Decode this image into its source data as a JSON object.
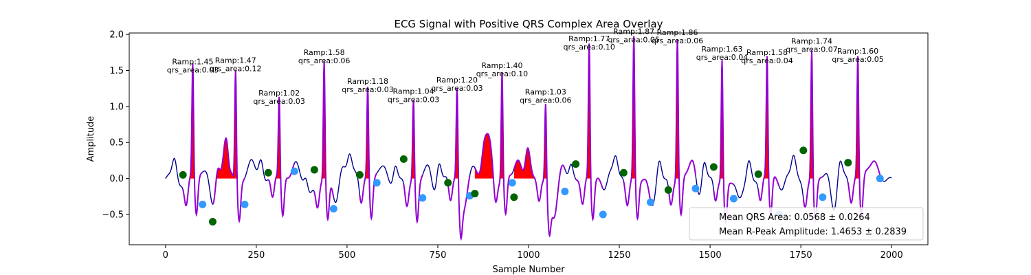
{
  "chart_data": {
    "type": "line",
    "title": "ECG Signal with Positive QRS Complex Area Overlay",
    "xlabel": "Sample Number",
    "ylabel": "Amplitude",
    "xlim": [
      -100,
      2100
    ],
    "ylim": [
      -0.92,
      2.02
    ],
    "xticks": [
      0,
      250,
      500,
      750,
      1000,
      1250,
      1500,
      1750,
      2000
    ],
    "yticks": [
      -0.5,
      0.0,
      0.5,
      1.0,
      1.5,
      2.0
    ],
    "xtick_labels": [
      "0",
      "250",
      "500",
      "750",
      "1000",
      "1250",
      "1500",
      "1750",
      "2000"
    ],
    "ytick_labels": [
      "−0.5",
      "0.0",
      "0.5",
      "1.0",
      "1.5",
      "2.0"
    ],
    "colors": {
      "signal": "#00008b",
      "qrs_segment": "#9400d3",
      "qrs_area": "#ff0000",
      "onset_marker": "#006400",
      "offset_marker": "#3399ff"
    },
    "beats": [
      {
        "r_x": 75,
        "r_amp": 1.45,
        "qrs_area": "0.03",
        "onset": [
          48,
          0.05
        ],
        "offset": [
          102,
          -0.36
        ],
        "prev_trough": [
          -0.2,
          40
        ]
      },
      {
        "r_x": 193,
        "r_amp": 1.47,
        "qrs_area": "0.12",
        "onset": [
          130,
          -0.6
        ],
        "offset": [
          218,
          -0.36
        ],
        "prev_trough": [
          -0.6,
          130
        ]
      },
      {
        "r_x": 313,
        "r_amp": 1.02,
        "qrs_area": "0.03",
        "onset": [
          283,
          0.08
        ],
        "offset": [
          355,
          0.1
        ],
        "prev_trough": [
          -0.1,
          270
        ]
      },
      {
        "r_x": 437,
        "r_amp": 1.58,
        "qrs_area": "0.06",
        "onset": [
          410,
          0.12
        ],
        "offset": [
          463,
          -0.42
        ],
        "prev_trough": [
          -0.35,
          390
        ]
      },
      {
        "r_x": 557,
        "r_amp": 1.18,
        "qrs_area": "0.03",
        "onset": [
          535,
          0.05
        ],
        "offset": [
          582,
          -0.06
        ],
        "prev_trough": [
          -0.5,
          470
        ]
      },
      {
        "r_x": 683,
        "r_amp": 1.04,
        "qrs_area": "0.03",
        "onset": [
          656,
          0.27
        ],
        "offset": [
          708,
          -0.27
        ],
        "prev_trough": [
          -0.1,
          620
        ]
      },
      {
        "r_x": 803,
        "r_amp": 1.2,
        "qrs_area": "0.03",
        "onset": [
          778,
          -0.06
        ],
        "offset": [
          838,
          -0.24
        ],
        "prev_trough": [
          -0.45,
          740
        ]
      },
      {
        "r_x": 927,
        "r_amp": 1.4,
        "qrs_area": "0.10",
        "onset": [
          852,
          -0.21
        ],
        "offset": [
          955,
          -0.06
        ],
        "prev_trough": [
          -0.5,
          820
        ]
      },
      {
        "r_x": 1047,
        "r_amp": 1.03,
        "qrs_area": "0.06",
        "onset": [
          960,
          -0.26
        ],
        "offset": [
          1100,
          -0.18
        ],
        "prev_trough": [
          -0.6,
          1000
        ]
      },
      {
        "r_x": 1167,
        "r_amp": 1.77,
        "qrs_area": "0.10",
        "onset": [
          1130,
          0.2
        ],
        "offset": [
          1205,
          -0.5
        ],
        "prev_trough": [
          -0.7,
          1070
        ]
      },
      {
        "r_x": 1290,
        "r_amp": 1.87,
        "qrs_area": "0.05",
        "onset": [
          1262,
          0.08
        ],
        "offset": [
          1336,
          -0.33
        ],
        "prev_trough": [
          -0.5,
          1210
        ]
      },
      {
        "r_x": 1410,
        "r_amp": 1.86,
        "qrs_area": "0.06",
        "onset": [
          1385,
          -0.16
        ],
        "offset": [
          1460,
          -0.14
        ],
        "prev_trough": [
          -0.6,
          1340
        ]
      },
      {
        "r_x": 1533,
        "r_amp": 1.63,
        "qrs_area": "0.04",
        "onset": [
          1510,
          0.16
        ],
        "offset": [
          1565,
          -0.28
        ],
        "prev_trough": [
          -0.4,
          1470
        ]
      },
      {
        "r_x": 1657,
        "r_amp": 1.58,
        "qrs_area": "0.04",
        "onset": [
          1633,
          0.06
        ],
        "offset": [
          1690,
          -0.5
        ],
        "prev_trough": [
          -0.6,
          1580
        ]
      },
      {
        "r_x": 1780,
        "r_amp": 1.74,
        "qrs_area": "0.07",
        "onset": [
          1757,
          0.39
        ],
        "offset": [
          1810,
          -0.26
        ],
        "prev_trough": [
          -0.5,
          1700
        ]
      },
      {
        "r_x": 1907,
        "r_amp": 1.6,
        "qrs_area": "0.05",
        "onset": [
          1880,
          0.22
        ],
        "offset": [
          1968,
          0.0
        ],
        "prev_trough": [
          -0.6,
          1840
        ]
      }
    ],
    "legend": {
      "placement": "lower right",
      "entries": [
        "Mean QRS Area: 0.0568 ± 0.0264",
        "Mean R-Peak Amplitude: 1.4653 ± 0.2839"
      ]
    },
    "annotation_prefix_ramp": "Ramp:",
    "annotation_prefix_area": "qrs_area:"
  }
}
